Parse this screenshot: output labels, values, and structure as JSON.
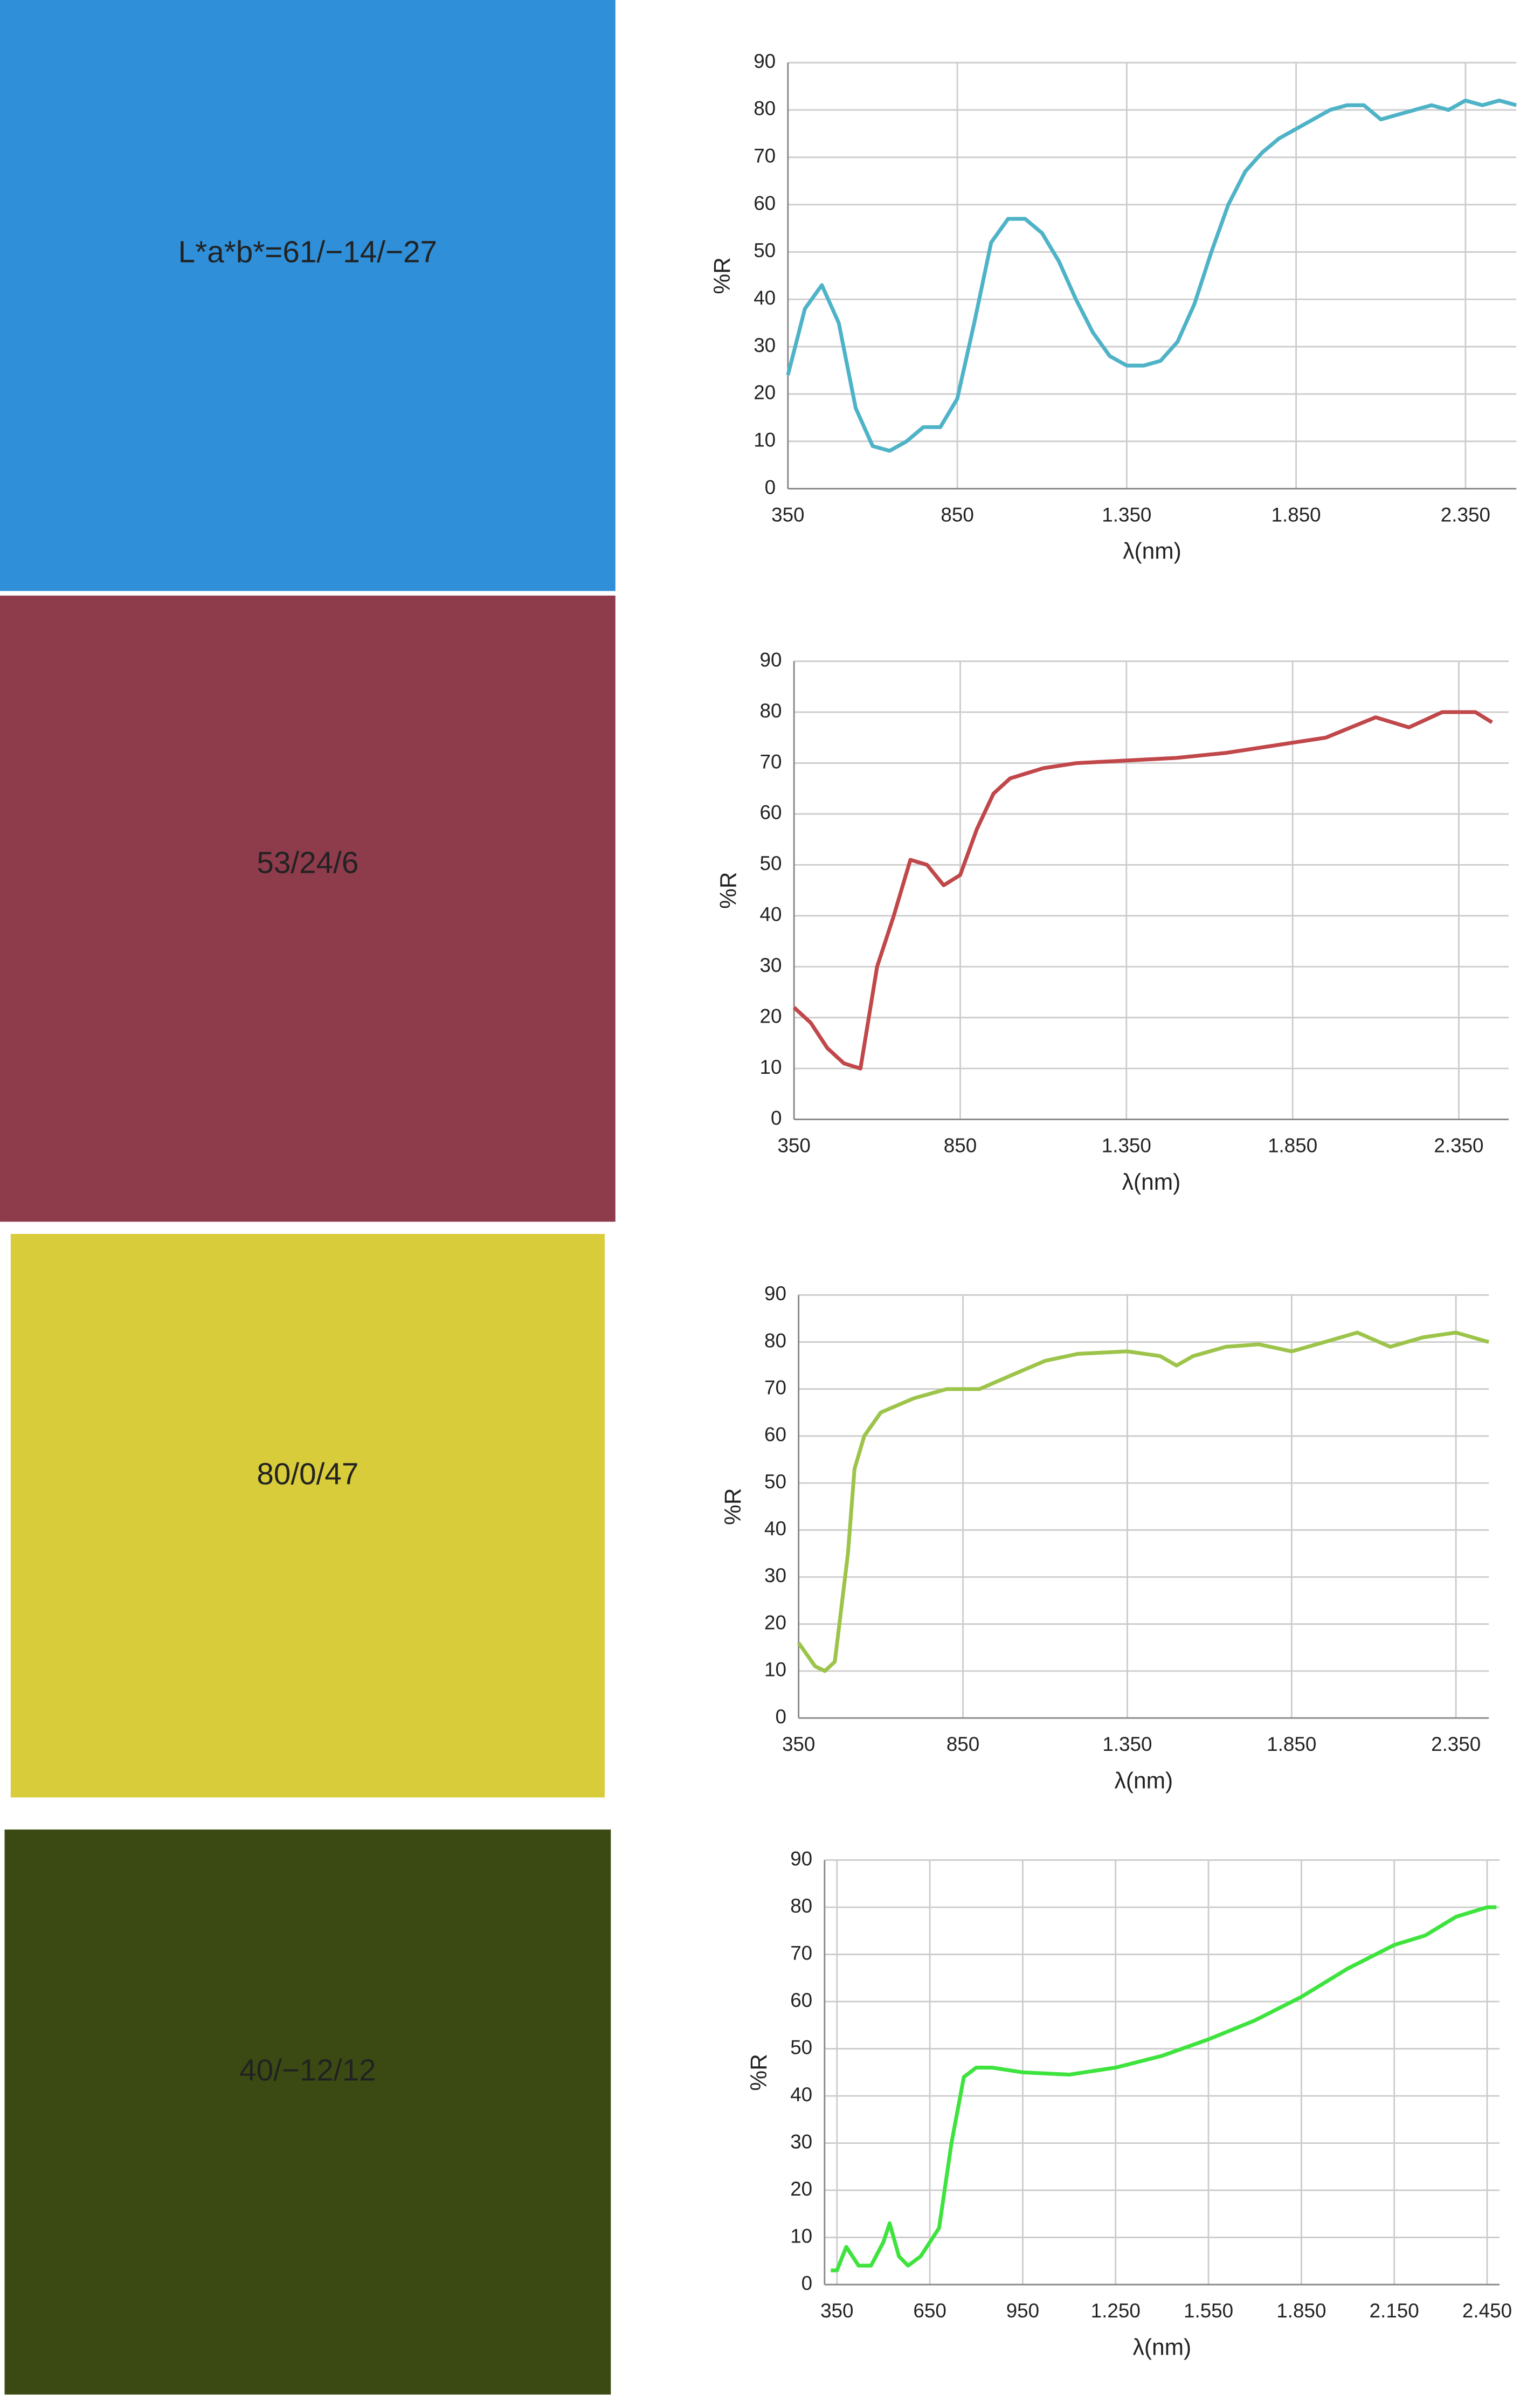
{
  "chart_data": [
    {
      "type": "line",
      "annotation": "L*a*b*=61/−14/−27",
      "tile_color": "#2f8fd8",
      "color": "#4fb3c8",
      "xlabel": "λ(nm)",
      "ylabel": "%R",
      "x": [
        350,
        400,
        450,
        500,
        550,
        600,
        650,
        700,
        750,
        800,
        850,
        900,
        950,
        1000,
        1050,
        1100,
        1150,
        1200,
        1250,
        1300,
        1350,
        1400,
        1450,
        1500,
        1550,
        1600,
        1650,
        1700,
        1750,
        1800,
        1850,
        1900,
        1950,
        2000,
        2050,
        2100,
        2150,
        2200,
        2250,
        2300,
        2350,
        2400,
        2450,
        2500
      ],
      "values": [
        24,
        38,
        43,
        35,
        17,
        9,
        8,
        10,
        13,
        13,
        19,
        35,
        52,
        57,
        57,
        54,
        48,
        40,
        33,
        28,
        26,
        26,
        27,
        31,
        39,
        50,
        60,
        67,
        71,
        74,
        76,
        78,
        80,
        81,
        81,
        78,
        79,
        80,
        81,
        80,
        82,
        81,
        82,
        81
      ],
      "xlim": [
        350,
        2500
      ],
      "ylim": [
        0,
        90
      ],
      "xticks": [
        350,
        850,
        {
          "value": 1350,
          "label": "1.350"
        },
        {
          "value": 1850,
          "label": "1.850"
        },
        {
          "value": 2350,
          "label": "2.350"
        }
      ],
      "yticks": [
        0,
        10,
        20,
        30,
        40,
        50,
        60,
        70,
        80,
        90
      ],
      "grid": true
    },
    {
      "type": "line",
      "annotation": "53/24/6",
      "tile_color": "#8e3b4c",
      "color": "#c0474a",
      "xlabel": "λ(nm)",
      "ylabel": "%R",
      "x": [
        350,
        400,
        450,
        500,
        550,
        600,
        650,
        700,
        750,
        800,
        850,
        900,
        950,
        1000,
        1100,
        1200,
        1350,
        1500,
        1650,
        1800,
        1950,
        2100,
        2200,
        2300,
        2400,
        2450
      ],
      "values": [
        22,
        19,
        14,
        11,
        10,
        30,
        40,
        51,
        50,
        46,
        48,
        57,
        64,
        67,
        69,
        70,
        70.5,
        71,
        72,
        73.5,
        75,
        79,
        77,
        80,
        80,
        78
      ],
      "xlim": [
        350,
        2500
      ],
      "ylim": [
        0,
        90
      ],
      "xticks": [
        350,
        850,
        {
          "value": 1350,
          "label": "1.350"
        },
        {
          "value": 1850,
          "label": "1.850"
        },
        {
          "value": 2350,
          "label": "2.350"
        }
      ],
      "yticks": [
        0,
        10,
        20,
        30,
        40,
        50,
        60,
        70,
        80,
        90
      ],
      "grid": true
    },
    {
      "type": "line",
      "annotation": "80/0/47",
      "tile_color": "#d9cc3a",
      "color": "#9dc44a",
      "xlabel": "λ(nm)",
      "ylabel": "%R",
      "x": [
        350,
        400,
        430,
        460,
        500,
        520,
        550,
        600,
        700,
        800,
        900,
        1000,
        1100,
        1200,
        1350,
        1450,
        1500,
        1550,
        1650,
        1750,
        1850,
        1950,
        2050,
        2150,
        2250,
        2350,
        2450
      ],
      "values": [
        16,
        11,
        10,
        12,
        35,
        53,
        60,
        65,
        68,
        70,
        70,
        73,
        76,
        77.5,
        78,
        77,
        75,
        77,
        79,
        79.5,
        78,
        80,
        82,
        79,
        81,
        82,
        80
      ],
      "xlim": [
        350,
        2450
      ],
      "ylim": [
        0,
        90
      ],
      "xticks": [
        350,
        850,
        {
          "value": 1350,
          "label": "1.350"
        },
        {
          "value": 1850,
          "label": "1.850"
        },
        {
          "value": 2350,
          "label": "2.350"
        }
      ],
      "yticks": [
        0,
        10,
        20,
        30,
        40,
        50,
        60,
        70,
        80,
        90
      ],
      "grid": true
    },
    {
      "type": "line",
      "annotation": "40/−12/12",
      "tile_color": "#3b4a12",
      "color": "#3ee33e",
      "xlabel": "λ(nm)",
      "ylabel": "%R",
      "x": [
        330,
        350,
        380,
        420,
        460,
        500,
        520,
        550,
        580,
        620,
        680,
        720,
        760,
        800,
        850,
        950,
        1100,
        1250,
        1400,
        1550,
        1700,
        1850,
        2000,
        2150,
        2250,
        2350,
        2450,
        2480
      ],
      "values": [
        3,
        3,
        8,
        4,
        4,
        9,
        13,
        6,
        4,
        6,
        12,
        30,
        44,
        46,
        46,
        45,
        44.5,
        46,
        48.5,
        52,
        56,
        61,
        67,
        72,
        74,
        78,
        80,
        80
      ],
      "xlim": [
        310,
        2490
      ],
      "ylim": [
        0,
        90
      ],
      "xticks": [
        350,
        650,
        950,
        {
          "value": 1250,
          "label": "1.250"
        },
        {
          "value": 1550,
          "label": "1.550"
        },
        {
          "value": 1850,
          "label": "1.850"
        },
        {
          "value": 2150,
          "label": "2.150"
        },
        {
          "value": 2450,
          "label": "2.450"
        }
      ],
      "yticks": [
        0,
        10,
        20,
        30,
        40,
        50,
        60,
        70,
        80,
        90
      ],
      "grid": true
    }
  ]
}
